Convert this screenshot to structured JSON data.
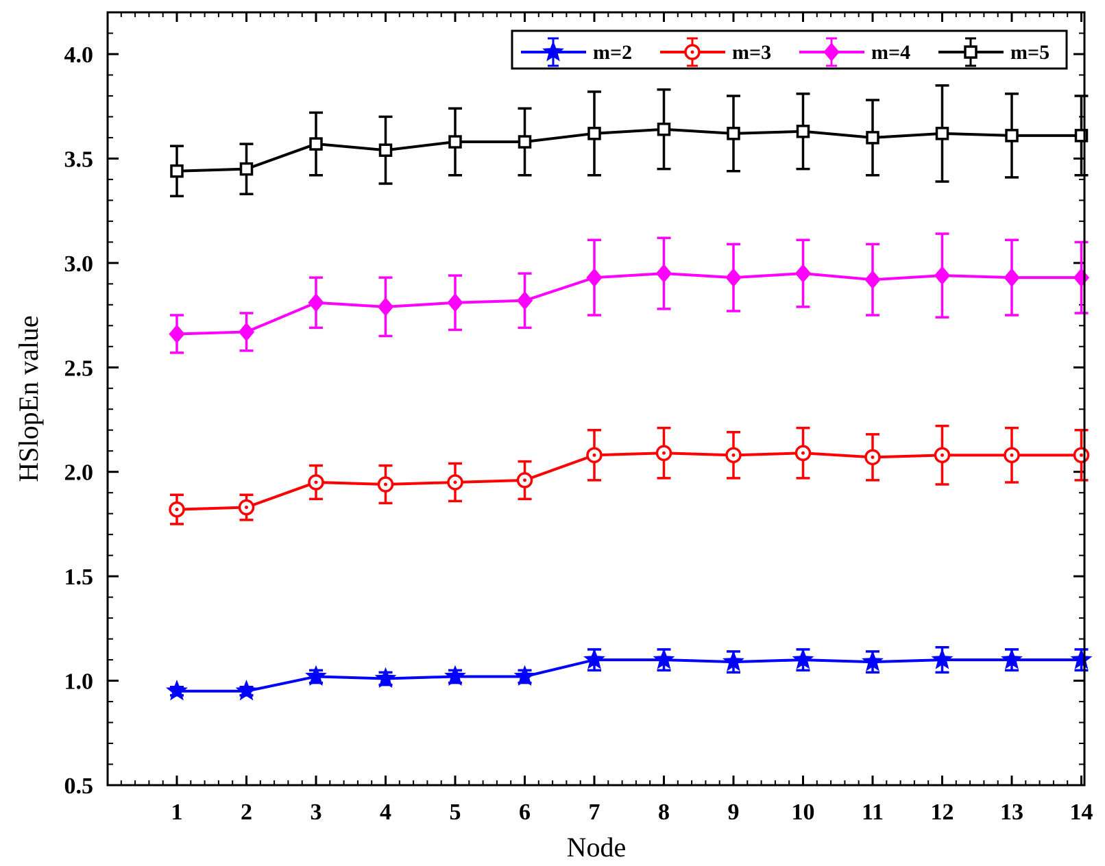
{
  "chart_data": {
    "type": "line",
    "xlabel": "Node",
    "ylabel": "HSlopEn value",
    "xlim": [
      0,
      14
    ],
    "ylim": [
      0.5,
      4.2
    ],
    "xticks": [
      1,
      2,
      3,
      4,
      5,
      6,
      7,
      8,
      9,
      10,
      11,
      12,
      13,
      14
    ],
    "yticks": [
      0.5,
      1.0,
      1.5,
      2.0,
      2.5,
      3.0,
      3.5,
      4.0
    ],
    "ytick_labels": [
      "0.5",
      "1.0",
      "1.5",
      "2.0",
      "2.5",
      "3.0",
      "3.5",
      "4.0"
    ],
    "legend_position": "top-right",
    "series": [
      {
        "name": "m=2",
        "color": "#0000ff",
        "marker": "star",
        "x": [
          1,
          2,
          3,
          4,
          5,
          6,
          7,
          8,
          9,
          10,
          11,
          12,
          13,
          14
        ],
        "values": [
          0.95,
          0.95,
          1.02,
          1.01,
          1.02,
          1.02,
          1.1,
          1.1,
          1.09,
          1.1,
          1.09,
          1.1,
          1.1,
          1.1
        ],
        "errors": [
          0.02,
          0.02,
          0.03,
          0.03,
          0.03,
          0.03,
          0.05,
          0.05,
          0.05,
          0.05,
          0.05,
          0.06,
          0.05,
          0.05
        ]
      },
      {
        "name": "m=3",
        "color": "#ff0000",
        "marker": "circle",
        "x": [
          1,
          2,
          3,
          4,
          5,
          6,
          7,
          8,
          9,
          10,
          11,
          12,
          13,
          14
        ],
        "values": [
          1.82,
          1.83,
          1.95,
          1.94,
          1.95,
          1.96,
          2.08,
          2.09,
          2.08,
          2.09,
          2.07,
          2.08,
          2.08,
          2.08
        ],
        "errors": [
          0.07,
          0.06,
          0.08,
          0.09,
          0.09,
          0.09,
          0.12,
          0.12,
          0.11,
          0.12,
          0.11,
          0.14,
          0.13,
          0.12
        ]
      },
      {
        "name": "m=4",
        "color": "#ff00ff",
        "marker": "diamond",
        "x": [
          1,
          2,
          3,
          4,
          5,
          6,
          7,
          8,
          9,
          10,
          11,
          12,
          13,
          14
        ],
        "values": [
          2.66,
          2.67,
          2.81,
          2.79,
          2.81,
          2.82,
          2.93,
          2.95,
          2.93,
          2.95,
          2.92,
          2.94,
          2.93,
          2.93
        ],
        "errors": [
          0.09,
          0.09,
          0.12,
          0.14,
          0.13,
          0.13,
          0.18,
          0.17,
          0.16,
          0.16,
          0.17,
          0.2,
          0.18,
          0.17
        ]
      },
      {
        "name": "m=5",
        "color": "#000000",
        "marker": "square",
        "x": [
          1,
          2,
          3,
          4,
          5,
          6,
          7,
          8,
          9,
          10,
          11,
          12,
          13,
          14
        ],
        "values": [
          3.44,
          3.45,
          3.57,
          3.54,
          3.58,
          3.58,
          3.62,
          3.64,
          3.62,
          3.63,
          3.6,
          3.62,
          3.61,
          3.61
        ],
        "errors": [
          0.12,
          0.12,
          0.15,
          0.16,
          0.16,
          0.16,
          0.2,
          0.19,
          0.18,
          0.18,
          0.18,
          0.23,
          0.2,
          0.19
        ]
      }
    ]
  }
}
